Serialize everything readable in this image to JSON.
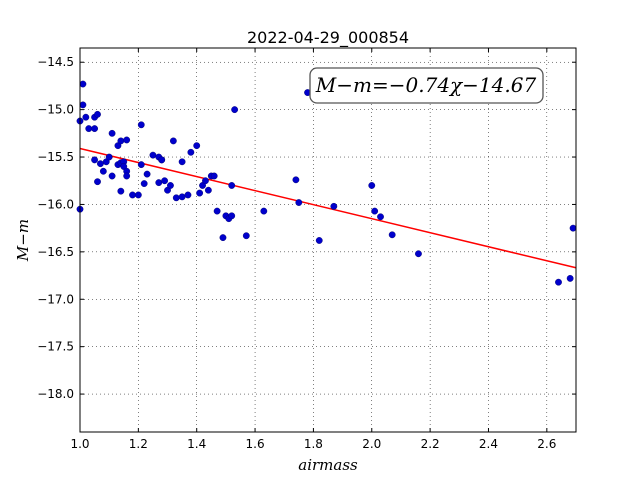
{
  "chart_data": {
    "type": "scatter",
    "title": "2022-04-29_000854",
    "xlabel": "airmass",
    "ylabel": "M−m",
    "xlim": [
      1.0,
      2.7
    ],
    "ylim": [
      -18.4,
      -14.35
    ],
    "x_ticks": [
      1.0,
      1.2,
      1.4,
      1.6,
      1.8,
      2.0,
      2.2,
      2.4,
      2.6
    ],
    "x_tick_labels": [
      "1.0",
      "1.2",
      "1.4",
      "1.6",
      "1.8",
      "2.0",
      "2.2",
      "2.4",
      "2.6"
    ],
    "y_ticks": [
      -14.5,
      -15.0,
      -15.5,
      -16.0,
      -16.5,
      -17.0,
      -17.5,
      -18.0
    ],
    "y_tick_labels": [
      "−14.5",
      "−15.0",
      "−15.5",
      "−16.0",
      "−16.5",
      "−17.0",
      "−17.5",
      "−18.0"
    ],
    "grid": true,
    "annotation": "M−m=−0.74χ−14.67",
    "fit_line": {
      "slope": -0.74,
      "intercept": -14.67,
      "color": "#ff0000"
    },
    "point_color": "#0000cc",
    "points": [
      [
        1.01,
        -14.73
      ],
      [
        1.01,
        -14.95
      ],
      [
        1.0,
        -15.12
      ],
      [
        1.02,
        -15.08
      ],
      [
        1.03,
        -15.2
      ],
      [
        1.05,
        -15.2
      ],
      [
        1.05,
        -15.08
      ],
      [
        1.06,
        -15.05
      ],
      [
        1.0,
        -16.05
      ],
      [
        1.05,
        -15.53
      ],
      [
        1.06,
        -15.76
      ],
      [
        1.07,
        -15.57
      ],
      [
        1.08,
        -15.65
      ],
      [
        1.09,
        -15.55
      ],
      [
        1.1,
        -15.5
      ],
      [
        1.11,
        -15.25
      ],
      [
        1.11,
        -15.7
      ],
      [
        1.13,
        -15.58
      ],
      [
        1.13,
        -15.38
      ],
      [
        1.14,
        -15.33
      ],
      [
        1.14,
        -15.56
      ],
      [
        1.15,
        -15.55
      ],
      [
        1.15,
        -15.6
      ],
      [
        1.16,
        -15.65
      ],
      [
        1.16,
        -15.32
      ],
      [
        1.14,
        -15.86
      ],
      [
        1.16,
        -15.7
      ],
      [
        1.18,
        -15.9
      ],
      [
        1.2,
        -15.9
      ],
      [
        1.21,
        -15.16
      ],
      [
        1.21,
        -15.58
      ],
      [
        1.22,
        -15.78
      ],
      [
        1.23,
        -15.68
      ],
      [
        1.25,
        -15.48
      ],
      [
        1.27,
        -15.5
      ],
      [
        1.27,
        -15.77
      ],
      [
        1.28,
        -15.53
      ],
      [
        1.28,
        -15.53
      ],
      [
        1.29,
        -15.75
      ],
      [
        1.3,
        -15.85
      ],
      [
        1.31,
        -15.8
      ],
      [
        1.32,
        -15.33
      ],
      [
        1.33,
        -15.93
      ],
      [
        1.35,
        -15.55
      ],
      [
        1.35,
        -15.92
      ],
      [
        1.37,
        -15.9
      ],
      [
        1.38,
        -15.45
      ],
      [
        1.4,
        -15.38
      ],
      [
        1.41,
        -15.88
      ],
      [
        1.42,
        -15.8
      ],
      [
        1.43,
        -15.75
      ],
      [
        1.44,
        -15.85
      ],
      [
        1.45,
        -15.7
      ],
      [
        1.46,
        -15.7
      ],
      [
        1.47,
        -16.07
      ],
      [
        1.49,
        -16.35
      ],
      [
        1.5,
        -16.12
      ],
      [
        1.51,
        -16.15
      ],
      [
        1.52,
        -16.12
      ],
      [
        1.52,
        -15.8
      ],
      [
        1.53,
        -15.0
      ],
      [
        1.57,
        -16.33
      ],
      [
        1.63,
        -16.07
      ],
      [
        1.74,
        -15.74
      ],
      [
        1.75,
        -15.98
      ],
      [
        1.78,
        -14.82
      ],
      [
        1.82,
        -16.38
      ],
      [
        1.87,
        -16.02
      ],
      [
        2.0,
        -15.8
      ],
      [
        2.01,
        -16.07
      ],
      [
        2.03,
        -16.13
      ],
      [
        2.07,
        -16.32
      ],
      [
        2.16,
        -16.52
      ],
      [
        2.64,
        -16.82
      ],
      [
        2.68,
        -16.78
      ],
      [
        2.69,
        -16.25
      ]
    ]
  }
}
